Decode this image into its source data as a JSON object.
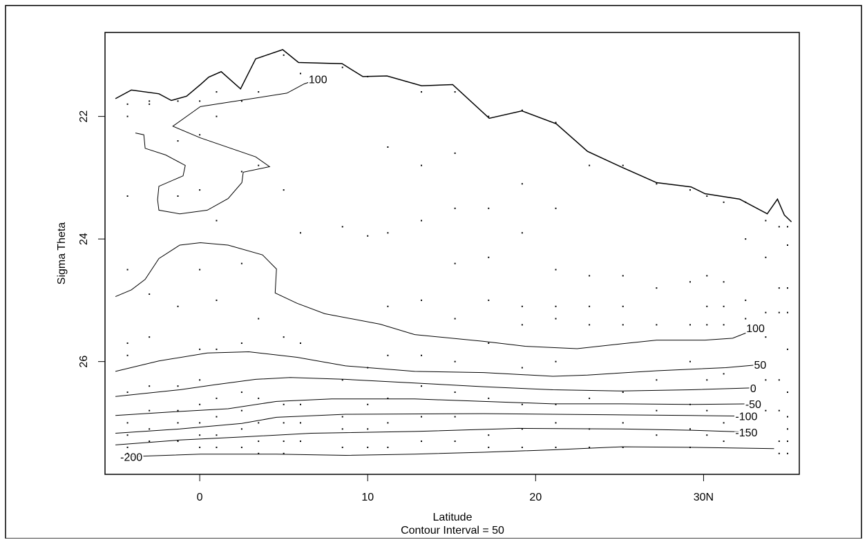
{
  "chart_data": {
    "type": "contour",
    "x_label": "Latitude",
    "y_label": "Sigma Theta",
    "annotation": "Contour Interval = 50",
    "xlim": [
      -5.64,
      35.7
    ],
    "ylim": [
      27.84,
      20.63
    ],
    "xticks": [
      0,
      10,
      20,
      {
        "value": 30,
        "label": "30N"
      }
    ],
    "yticks": [
      22,
      24,
      26
    ],
    "boundary": {
      "color": "#000000",
      "x": [
        -5.02,
        -4.07,
        -2.43,
        -1.69,
        -0.78,
        0.04,
        0.53,
        1.28,
        2.43,
        3.33,
        4.94,
        5.88,
        8.48,
        9.71,
        11.15,
        13.21,
        15.06,
        17.24,
        19.18,
        21.23,
        23.09,
        25.14,
        27.2,
        29.26,
        30.08,
        32.14,
        33.79,
        34.4,
        34.81,
        35.23
      ],
      "y": [
        21.71,
        21.57,
        21.63,
        21.74,
        21.67,
        21.48,
        21.36,
        21.27,
        21.55,
        21.06,
        20.91,
        21.12,
        21.14,
        21.35,
        21.34,
        21.5,
        21.48,
        22.03,
        21.91,
        22.12,
        22.57,
        22.83,
        23.08,
        23.15,
        23.26,
        23.35,
        23.59,
        23.35,
        23.61,
        23.72
      ]
    },
    "series": [
      {
        "name": "100",
        "color": "#000000",
        "x": [
          -3.83,
          -3.33,
          -3.25,
          -2.02,
          -0.86,
          -0.99,
          -2.43,
          -2.51,
          -2.43,
          -1.19,
          0.45,
          1.69,
          2.51,
          2.59,
          4.16,
          3.33,
          0.04,
          -1.6,
          -0.37,
          0.04,
          5.19,
          6.21,
          7.04
        ],
        "y": [
          22.27,
          22.3,
          22.52,
          22.63,
          22.8,
          22.97,
          23.14,
          23.36,
          23.53,
          23.59,
          23.53,
          23.34,
          23.08,
          22.91,
          22.82,
          22.66,
          22.35,
          22.16,
          21.92,
          21.84,
          21.62,
          21.47,
          21.39
        ]
      },
      {
        "name": "100",
        "color": "#000000",
        "x": [
          -5.02,
          -4.07,
          -3.25,
          -2.43,
          -1.19,
          0.04,
          1.69,
          3.74,
          4.57,
          4.49,
          5.8,
          7.45,
          10.74,
          12.8,
          16.91,
          19.38,
          22.47,
          25.14,
          27.2,
          30.08,
          31.73,
          32.55,
          33.09
        ],
        "y": [
          24.94,
          24.83,
          24.66,
          24.32,
          24.1,
          24.06,
          24.1,
          24.26,
          24.49,
          24.88,
          25.05,
          25.22,
          25.39,
          25.56,
          25.67,
          25.75,
          25.79,
          25.71,
          25.65,
          25.65,
          25.62,
          25.53,
          25.45
        ]
      },
      {
        "name": "50",
        "color": "#000000",
        "x": [
          -5.02,
          -2.43,
          0.45,
          2.92,
          5.8,
          8.68,
          12.8,
          16.91,
          21.03,
          23.09,
          27.2,
          31.32,
          33.37
        ],
        "y": [
          26.16,
          25.99,
          25.86,
          25.84,
          25.93,
          26.07,
          26.16,
          26.18,
          26.24,
          26.22,
          26.15,
          26.1,
          26.05
        ]
      },
      {
        "name": "0",
        "color": "#000000",
        "x": [
          -5.02,
          -1.19,
          0.86,
          3.33,
          5.39,
          8.68,
          12.8,
          16.91,
          21.03,
          25.14,
          29.26,
          32.96
        ],
        "y": [
          26.57,
          26.46,
          26.38,
          26.29,
          26.26,
          26.29,
          26.35,
          26.41,
          26.46,
          26.48,
          26.46,
          26.43
        ]
      },
      {
        "name": "-50",
        "color": "#000000",
        "x": [
          -5.02,
          -1.6,
          1.69,
          4.57,
          7.86,
          12.8,
          16.91,
          21.03,
          25.14,
          29.26,
          32.96
        ],
        "y": [
          26.88,
          26.82,
          26.77,
          26.65,
          26.61,
          26.61,
          26.65,
          26.69,
          26.69,
          26.7,
          26.69
        ]
      },
      {
        "name": "-100",
        "color": "#000000",
        "x": [
          -5.02,
          -1.19,
          2.51,
          4.57,
          8.68,
          16.91,
          21.03,
          25.14,
          29.26,
          32.55
        ],
        "y": [
          27.17,
          27.1,
          27.01,
          26.91,
          26.86,
          26.85,
          26.86,
          26.87,
          26.88,
          26.89
        ]
      },
      {
        "name": "-150",
        "color": "#000000",
        "x": [
          -5.02,
          -1.19,
          2.51,
          6.63,
          12.8,
          18.97,
          25.14,
          29.26,
          32.55
        ],
        "y": [
          27.36,
          27.28,
          27.23,
          27.17,
          27.14,
          27.09,
          27.1,
          27.12,
          27.15
        ]
      },
      {
        "name": "-200",
        "color": "#000000",
        "x": [
          34.2,
          29.26,
          25.14,
          21.03,
          16.91,
          12.8,
          8.68,
          4.57,
          0.04,
          -2.02,
          -4.07
        ],
        "y": [
          27.42,
          27.4,
          27.39,
          27.44,
          27.48,
          27.51,
          27.53,
          27.51,
          27.51,
          27.53,
          27.55
        ]
      }
    ],
    "stations": {
      "color": "#000000",
      "x": [
        -4.3,
        -4.3,
        -4.3,
        -4.3,
        -4.3,
        -4.3,
        -4.3,
        -4.3,
        -4.3,
        -4.3,
        -4.3,
        -3,
        -3,
        -3,
        -3,
        -3,
        -3,
        -3,
        -3,
        -1.3,
        -1.3,
        -1.3,
        -1.3,
        -1.3,
        -1.3,
        -1.3,
        -1.3,
        0,
        0,
        0,
        0,
        0,
        0,
        0,
        0,
        0,
        0,
        1,
        1,
        1,
        1,
        1,
        1,
        1,
        1,
        1,
        2.5,
        2.5,
        2.5,
        2.5,
        2.5,
        2.5,
        2.5,
        2.5,
        3.5,
        3.5,
        3.5,
        3.5,
        3.5,
        3.5,
        3.5,
        5,
        5,
        5,
        5,
        5,
        5,
        5,
        6,
        6,
        6,
        6,
        6,
        6,
        8.5,
        8.5,
        8.5,
        8.5,
        8.5,
        8.5,
        10,
        10,
        10,
        10,
        10,
        10,
        11.2,
        11.2,
        11.2,
        11.2,
        11.2,
        11.2,
        11.2,
        13.2,
        13.2,
        13.2,
        13.2,
        13.2,
        13.2,
        13.2,
        13.2,
        15.2,
        15.2,
        15.2,
        15.2,
        15.2,
        15.2,
        15.2,
        15.2,
        15.2,
        17.2,
        17.2,
        17.2,
        17.2,
        17.2,
        17.2,
        17.2,
        17.2,
        19.2,
        19.2,
        19.2,
        19.2,
        19.2,
        19.2,
        19.2,
        19.2,
        19.2,
        21.2,
        21.2,
        21.2,
        21.2,
        21.2,
        21.2,
        21.2,
        21.2,
        21.2,
        23.2,
        23.2,
        23.2,
        23.2,
        23.2,
        23.2,
        23.2,
        25.2,
        25.2,
        25.2,
        25.2,
        25.2,
        25.2,
        25.2,
        27.2,
        27.2,
        27.2,
        27.2,
        27.2,
        27.2,
        29.2,
        29.2,
        29.2,
        29.2,
        29.2,
        29.2,
        29.2,
        30.2,
        30.2,
        30.2,
        30.2,
        30.2,
        30.2,
        30.2,
        31.2,
        31.2,
        31.2,
        31.2,
        31.2,
        31.2,
        31.2,
        32.5,
        32.5,
        32.5,
        32.5,
        33.7,
        33.7,
        33.7,
        33.7,
        33.7,
        33.7,
        34.5,
        34.5,
        34.5,
        34.5,
        34.5,
        34.5,
        34.5,
        35,
        35,
        35,
        35,
        35,
        35,
        35,
        35,
        35,
        35
      ],
      "y": [
        21.8,
        22,
        23.3,
        24.5,
        25.7,
        25.9,
        26.5,
        27,
        27.2,
        27.4,
        27.5,
        21.75,
        21.8,
        24.9,
        25.6,
        26.4,
        26.8,
        27.1,
        27.3,
        21.75,
        22.4,
        23.3,
        25.1,
        26.4,
        26.8,
        27,
        27.3,
        21.75,
        22.3,
        23.2,
        24.5,
        25.8,
        26.3,
        26.7,
        27,
        27.2,
        27.4,
        21.6,
        22,
        23.7,
        25,
        25.8,
        26.6,
        26.9,
        27.2,
        27.4,
        21.75,
        22.9,
        24.4,
        25.7,
        26.5,
        26.8,
        27.1,
        27.4,
        21.6,
        22.8,
        25.3,
        26.6,
        27,
        27.3,
        27.5,
        21,
        23.2,
        25.6,
        26.7,
        27,
        27.3,
        27.5,
        21.3,
        23.9,
        25.7,
        26.7,
        27,
        27.3,
        21.2,
        23.8,
        26.3,
        26.9,
        27.1,
        27.4,
        21.35,
        23.95,
        26.1,
        26.7,
        27.1,
        27.4,
        22.5,
        23.9,
        25.1,
        25.9,
        26.6,
        27,
        27.4,
        21.6,
        22.8,
        23.7,
        25,
        25.9,
        26.4,
        26.9,
        27.3,
        21.6,
        22.6,
        23.5,
        24.4,
        25.3,
        26,
        26.5,
        26.9,
        27.3,
        22,
        23.5,
        24.3,
        25,
        25.7,
        26.6,
        27.2,
        27.4,
        21.9,
        23.1,
        23.9,
        25.1,
        25.4,
        26.1,
        26.7,
        27.1,
        27.4,
        22.1,
        23.5,
        24.5,
        25.1,
        25.3,
        26,
        26.7,
        27,
        27.4,
        22.8,
        24.6,
        25.1,
        25.4,
        26.6,
        27.1,
        27.4,
        22.8,
        24.6,
        25.1,
        25.4,
        26.5,
        27,
        27.4,
        23.1,
        24.8,
        25.4,
        26.3,
        26.8,
        27.2,
        23.2,
        24.7,
        25.4,
        26,
        26.7,
        27.1,
        27.4,
        23.3,
        24.6,
        25.1,
        25.4,
        26.3,
        26.8,
        27.2,
        23.4,
        24.7,
        25.1,
        25.4,
        26.2,
        27,
        27.3,
        23.4,
        24,
        25,
        25.3,
        23.7,
        24.3,
        25.2,
        25.6,
        26.3,
        26.8,
        23.8,
        24.8,
        25.2,
        26.3,
        26.8,
        27.3,
        27.5,
        23.8,
        24.1,
        24.8,
        25.2,
        25.8,
        26.5,
        26.9,
        27.1,
        27.3,
        27.5
      ]
    }
  }
}
